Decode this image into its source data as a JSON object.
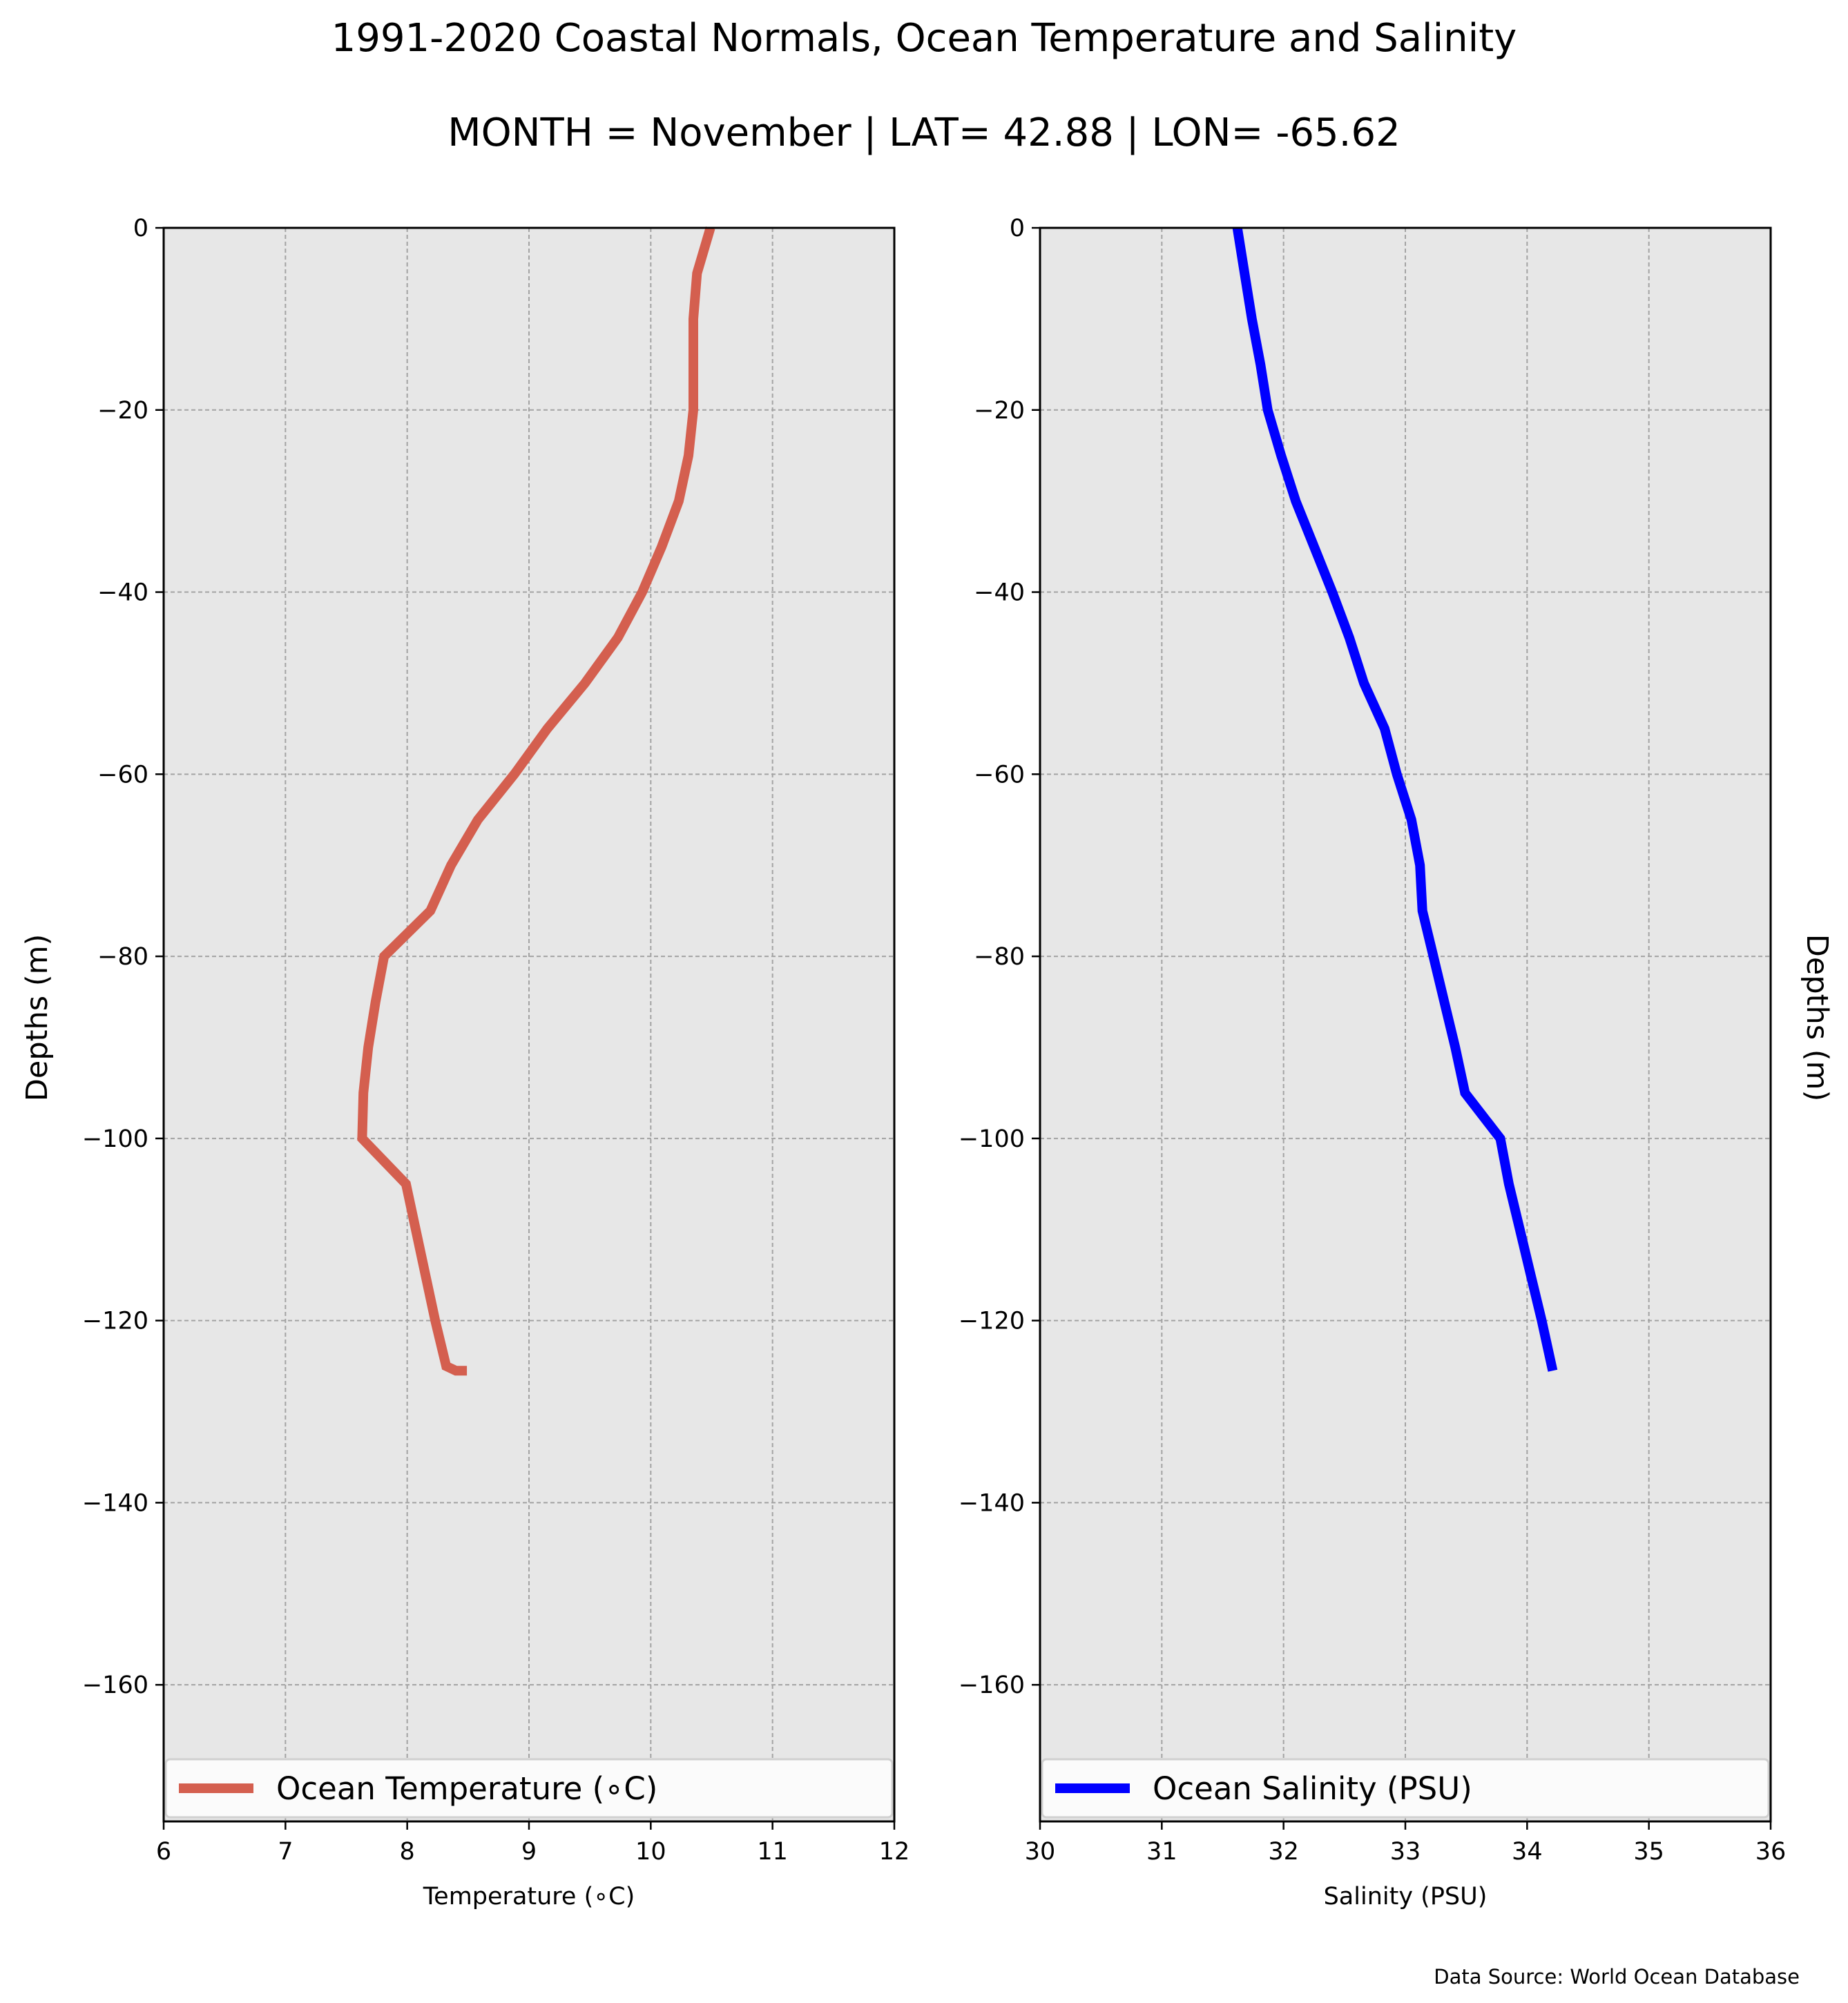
{
  "title": "1991-2020 Coastal Normals, Ocean Temperature and Salinity",
  "subtitle": "MONTH = November | LAT= 42.88 | LON= -65.62",
  "source": "Data Source: World Ocean Database",
  "chart_data": [
    {
      "type": "line",
      "xlabel": "Temperature (∘C)",
      "ylabel": "Depths (m)",
      "xlim": [
        6,
        12
      ],
      "ylim": [
        -175,
        0
      ],
      "xticks": [
        6,
        7,
        8,
        9,
        10,
        11,
        12
      ],
      "yticks": [
        0,
        -20,
        -40,
        -60,
        -80,
        -100,
        -120,
        -140,
        -160
      ],
      "ytick_labels": [
        "0",
        "−20",
        "−40",
        "−60",
        "−80",
        "−100",
        "−120",
        "−140",
        "−160"
      ],
      "grid": true,
      "legend_position": "bottom",
      "series": [
        {
          "name": "Ocean Temperature (∘C)",
          "color": "#d45f4f",
          "x": [
            10.49,
            10.38,
            10.35,
            10.35,
            10.35,
            10.31,
            10.23,
            10.09,
            9.93,
            9.73,
            9.46,
            9.15,
            8.88,
            8.58,
            8.36,
            8.19,
            7.81,
            7.74,
            7.68,
            7.64,
            7.63,
            7.99,
            8.07,
            8.15,
            8.23,
            8.32,
            8.4,
            8.49
          ],
          "y": [
            0,
            -5,
            -10,
            -15,
            -20,
            -25,
            -30,
            -35,
            -40,
            -45,
            -50,
            -55,
            -60,
            -65,
            -70,
            -75,
            -80,
            -85,
            -90,
            -95,
            -100,
            -105,
            -110,
            -115,
            -120,
            -125,
            -125.5,
            -125.5
          ]
        }
      ]
    },
    {
      "type": "line",
      "xlabel": "Salinity (PSU)",
      "ylabel": "Depths (m)",
      "xlim": [
        30,
        36
      ],
      "ylim": [
        -175,
        0
      ],
      "xticks": [
        30,
        31,
        32,
        33,
        34,
        35,
        36
      ],
      "yticks": [
        0,
        -20,
        -40,
        -60,
        -80,
        -100,
        -120,
        -140,
        -160
      ],
      "ytick_labels": [
        "0",
        "−20",
        "−40",
        "−60",
        "−80",
        "−100",
        "−120",
        "−140",
        "−160"
      ],
      "grid": true,
      "legend_position": "bottom",
      "series": [
        {
          "name": "Ocean Salinity (PSU)",
          "color": "#0000ff",
          "x": [
            31.62,
            31.68,
            31.74,
            31.81,
            31.87,
            31.98,
            32.1,
            32.25,
            32.4,
            32.54,
            32.66,
            32.83,
            32.93,
            33.05,
            33.12,
            33.14,
            33.23,
            33.32,
            33.41,
            33.49,
            33.49,
            33.78,
            33.85,
            33.94,
            34.03,
            34.12,
            34.21
          ],
          "y": [
            0,
            -5,
            -10,
            -15,
            -20,
            -25,
            -30,
            -35,
            -40,
            -45,
            -50,
            -55,
            -60,
            -65,
            -70,
            -75,
            -80,
            -85,
            -90,
            -95,
            -95,
            -100,
            -105,
            -110,
            -115,
            -120,
            -125.5
          ]
        }
      ]
    }
  ]
}
